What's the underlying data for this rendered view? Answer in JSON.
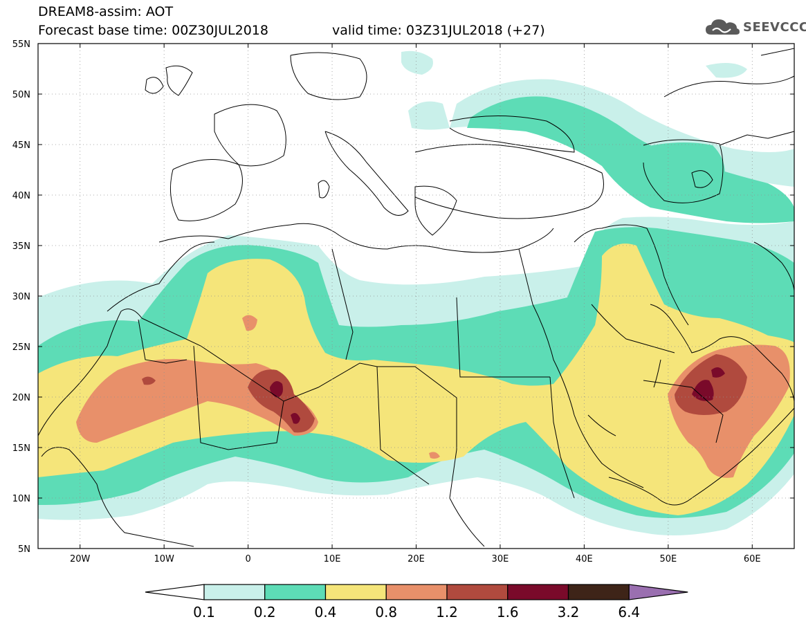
{
  "header": {
    "title": "DREAM8-assim: AOT",
    "base_time": "Forecast base time: 00Z30JUL2018",
    "valid_time": "valid time: 03Z31JUL2018 (+27)"
  },
  "logo": {
    "text": "SEEVCCC",
    "icon": "cloud-icon"
  },
  "map": {
    "lon_range": [
      -25,
      65
    ],
    "lat_range": [
      5,
      55
    ],
    "lon_ticks": [
      {
        "v": -20,
        "label": "20W"
      },
      {
        "v": -10,
        "label": "10W"
      },
      {
        "v": 0,
        "label": "0"
      },
      {
        "v": 10,
        "label": "10E"
      },
      {
        "v": 20,
        "label": "20E"
      },
      {
        "v": 30,
        "label": "30E"
      },
      {
        "v": 40,
        "label": "40E"
      },
      {
        "v": 50,
        "label": "50E"
      },
      {
        "v": 60,
        "label": "60E"
      }
    ],
    "lat_ticks": [
      {
        "v": 5,
        "label": "5N"
      },
      {
        "v": 10,
        "label": "10N"
      },
      {
        "v": 15,
        "label": "15N"
      },
      {
        "v": 20,
        "label": "20N"
      },
      {
        "v": 25,
        "label": "25N"
      },
      {
        "v": 30,
        "label": "30N"
      },
      {
        "v": 35,
        "label": "35N"
      },
      {
        "v": 40,
        "label": "40N"
      },
      {
        "v": 45,
        "label": "45N"
      },
      {
        "v": 50,
        "label": "50N"
      },
      {
        "v": 55,
        "label": "55N"
      }
    ],
    "grid": true
  },
  "colorbar": {
    "labels": [
      "0.1",
      "0.2",
      "0.4",
      "0.8",
      "1.2",
      "1.6",
      "3.2",
      "6.4"
    ],
    "colors": [
      "#ffffff",
      "#c9f0ea",
      "#5ddcb6",
      "#f5e57a",
      "#e8906a",
      "#b04a3e",
      "#7a0a2a",
      "#3e2418",
      "#9a6fb0"
    ]
  }
}
